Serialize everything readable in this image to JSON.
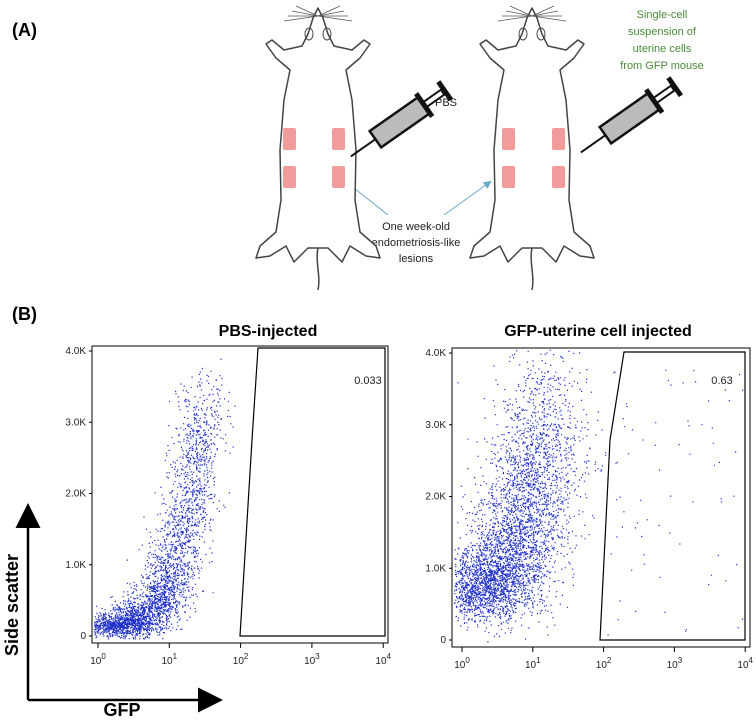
{
  "panel_a": {
    "label": "(A)",
    "pbs_label": "PBS",
    "gfp_label_lines": [
      "Single-cell",
      "suspension of",
      "uterine cells",
      "from GFP mouse"
    ],
    "lesion_note_lines": [
      "One week-old",
      "endometriosis-like",
      "lesions"
    ]
  },
  "panel_b": {
    "label": "(B)",
    "y_axis_label": "Side scatter",
    "x_axis_label": "GFP",
    "y_ticks": [
      "0",
      "1.0K",
      "2.0K",
      "3.0K",
      "4.0K"
    ],
    "x_ticks": [
      {
        "base": "10",
        "exp": "0"
      },
      {
        "base": "10",
        "exp": "1"
      },
      {
        "base": "10",
        "exp": "2"
      },
      {
        "base": "10",
        "exp": "3"
      },
      {
        "base": "10",
        "exp": "4"
      }
    ],
    "plots": [
      {
        "title": "PBS-injected",
        "gate_value": "0.033"
      },
      {
        "title": "GFP-uterine cell injected",
        "gate_value": "0.63"
      }
    ]
  }
}
